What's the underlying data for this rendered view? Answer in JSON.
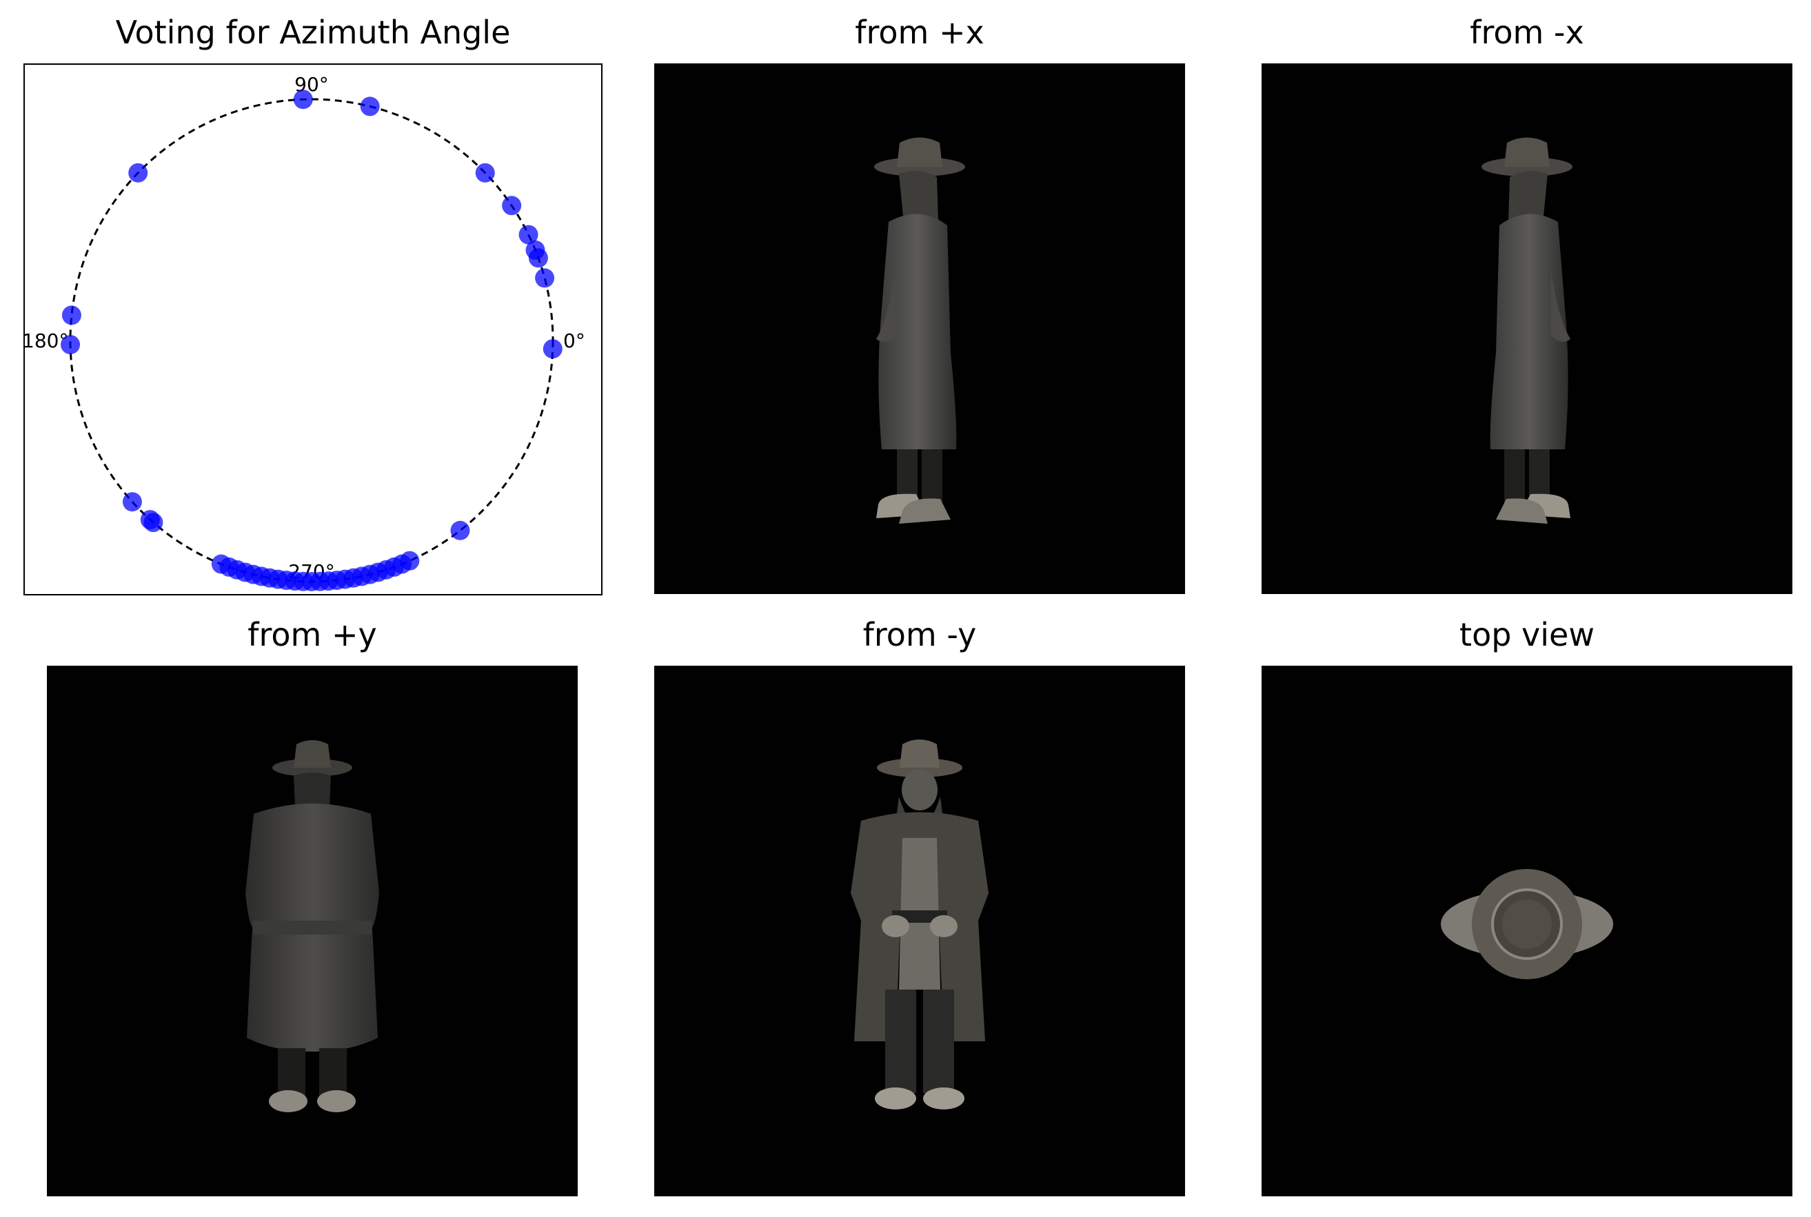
{
  "figure": {
    "panels": [
      {
        "id": "p1",
        "title": "Voting for Azimuth Angle"
      },
      {
        "id": "p2",
        "title": "from +x"
      },
      {
        "id": "p3",
        "title": "from -x"
      },
      {
        "id": "p4",
        "title": "from +y"
      },
      {
        "id": "p5",
        "title": "from -y"
      },
      {
        "id": "p6",
        "title": "top view"
      }
    ]
  },
  "chart_data": {
    "type": "scatter",
    "title": "Voting for Azimuth Angle",
    "coordinate_system": "polar",
    "angle_unit": "degrees",
    "angular_tick_labels": [
      "0°",
      "90°",
      "180°",
      "270°"
    ],
    "grid": false,
    "marker_color": "#0000ff",
    "points_deg": [
      -2,
      15,
      20,
      22,
      26,
      34,
      44,
      76,
      92,
      136,
      174,
      181,
      222,
      228,
      229,
      248,
      250,
      252,
      254,
      256,
      258,
      260,
      262,
      264,
      266,
      268,
      270,
      272,
      274,
      276,
      278,
      280,
      282,
      284,
      286,
      288,
      290,
      292,
      294,
      308
    ]
  }
}
